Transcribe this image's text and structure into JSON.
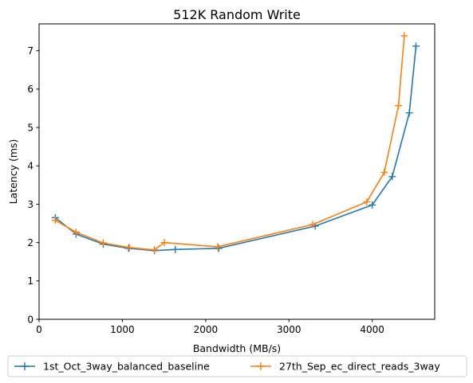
{
  "chart_data": {
    "type": "line",
    "title": "512K  Random Write",
    "xlabel": "Bandwidth (MB/s)",
    "ylabel": "Latency (ms)",
    "xlim": [
      0,
      4750
    ],
    "ylim": [
      0,
      7.7
    ],
    "xticks": [
      0,
      1000,
      2000,
      3000,
      4000
    ],
    "yticks": [
      0,
      1,
      2,
      3,
      4,
      5,
      6,
      7
    ],
    "grid": false,
    "legend_position": "bottom-center, below plot",
    "series": [
      {
        "name": "1st_Oct_3way_balanced_baseline",
        "color": "#1f77b4",
        "marker": "+",
        "points": [
          {
            "x": 195,
            "y": 2.65
          },
          {
            "x": 445,
            "y": 2.22
          },
          {
            "x": 770,
            "y": 1.96
          },
          {
            "x": 1075,
            "y": 1.85
          },
          {
            "x": 1385,
            "y": 1.79
          },
          {
            "x": 1635,
            "y": 1.82
          },
          {
            "x": 2155,
            "y": 1.85
          },
          {
            "x": 3315,
            "y": 2.43
          },
          {
            "x": 4000,
            "y": 2.98
          },
          {
            "x": 4240,
            "y": 3.72
          },
          {
            "x": 4445,
            "y": 5.38
          },
          {
            "x": 4525,
            "y": 7.12
          }
        ]
      },
      {
        "name": "27th_Sep_ec_direct_reads_3way",
        "color": "#ff7f0e",
        "marker": "+",
        "points": [
          {
            "x": 195,
            "y": 2.58
          },
          {
            "x": 445,
            "y": 2.27
          },
          {
            "x": 770,
            "y": 1.99
          },
          {
            "x": 1085,
            "y": 1.87
          },
          {
            "x": 1385,
            "y": 1.81
          },
          {
            "x": 1505,
            "y": 2.0
          },
          {
            "x": 2145,
            "y": 1.89
          },
          {
            "x": 3285,
            "y": 2.47
          },
          {
            "x": 3935,
            "y": 3.06
          },
          {
            "x": 4145,
            "y": 3.83
          },
          {
            "x": 4315,
            "y": 5.57
          },
          {
            "x": 4385,
            "y": 7.39
          }
        ]
      }
    ]
  }
}
